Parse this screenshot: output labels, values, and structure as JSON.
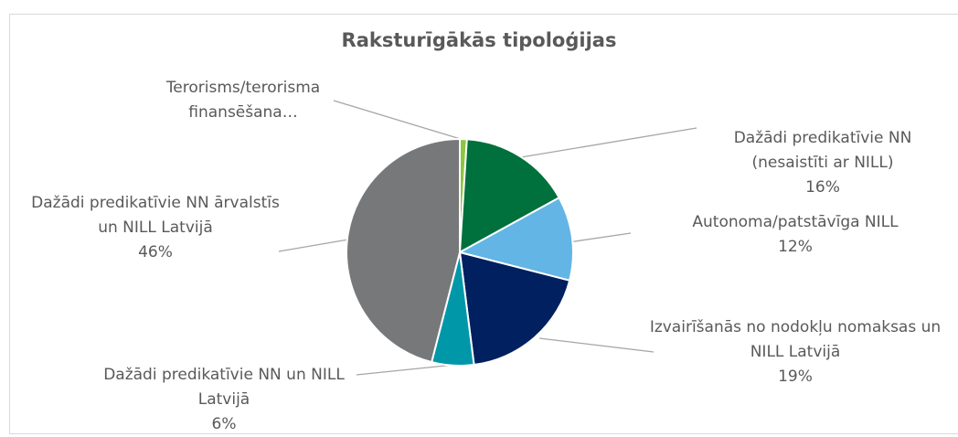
{
  "chart_data": {
    "type": "pie",
    "title": "Raksturīgākās tipoloģijas",
    "slices": [
      {
        "name": "Terorisms/terorisma finansēšana…",
        "value": 1,
        "color": "#8dc63f"
      },
      {
        "name": "Dažādi predikatīvie NN (nesaistīti ar NILL)",
        "value": 16,
        "value_label": "16%",
        "color": "#00703c"
      },
      {
        "name": "Autonoma/patstāvīga NILL",
        "value": 12,
        "value_label": "12%",
        "color": "#63b5e5"
      },
      {
        "name": "Izvairīšanās no nodokļu nomaksas un NILL Latvijā",
        "value": 19,
        "value_label": "19%",
        "color": "#002060"
      },
      {
        "name": "Dažādi predikatīvie NN un NILL Latvijā",
        "value": 6,
        "value_label": "6%",
        "color": "#0097a9"
      },
      {
        "name": "Dažādi predikatīvie NN ārvalstīs un NILL Latvijā",
        "value": 46,
        "value_label": "46%",
        "color": "#76787a"
      }
    ]
  }
}
